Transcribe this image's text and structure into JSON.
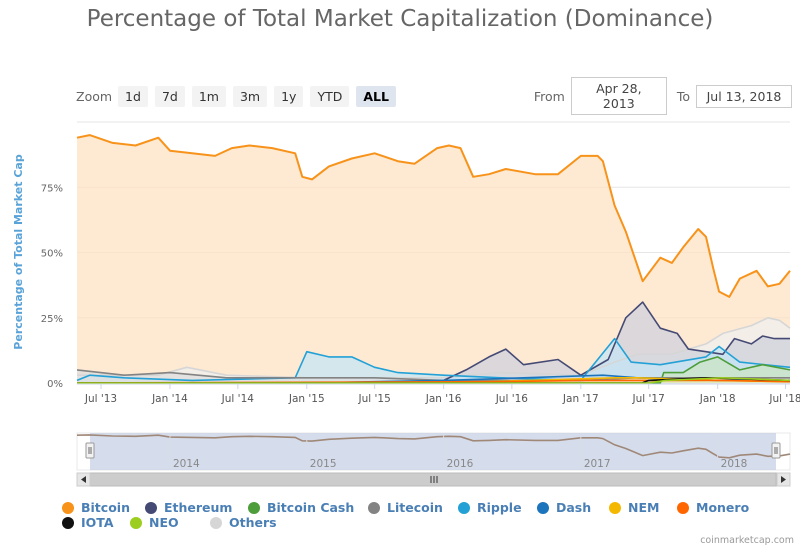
{
  "page": {
    "credit": "coinmarketcap.com"
  },
  "toolbar": {
    "zoom_label": "Zoom",
    "buttons": [
      {
        "label": "1d",
        "active": false
      },
      {
        "label": "7d",
        "active": false
      },
      {
        "label": "1m",
        "active": false
      },
      {
        "label": "3m",
        "active": false
      },
      {
        "label": "1y",
        "active": false
      },
      {
        "label": "YTD",
        "active": false
      },
      {
        "label": "ALL",
        "active": true
      }
    ],
    "from_label": "From",
    "from_value": "Apr 28, 2013",
    "to_label": "To",
    "to_value": "Jul 13, 2018"
  },
  "navigator": {
    "year_labels": [
      "2014",
      "2015",
      "2016",
      "2017",
      "2018"
    ]
  },
  "legend": [
    {
      "name": "Bitcoin",
      "color": "#f7931a"
    },
    {
      "name": "Ethereum",
      "color": "#454a75"
    },
    {
      "name": "Bitcoin Cash",
      "color": "#4d9e3a"
    },
    {
      "name": "Litecoin",
      "color": "#838383"
    },
    {
      "name": "Ripple",
      "color": "#23a1d6"
    },
    {
      "name": "Dash",
      "color": "#1c75bc"
    },
    {
      "name": "NEM",
      "color": "#f5b800"
    },
    {
      "name": "Monero",
      "color": "#ff6600"
    },
    {
      "name": "IOTA",
      "color": "#111111"
    },
    {
      "name": "NEO",
      "color": "#9bce1f"
    },
    {
      "name": "Others",
      "color": "#d6d6d6"
    }
  ],
  "chart_data": {
    "type": "area",
    "title": "Percentage of Total Market Capitalization (Dominance)",
    "ylabel": "Percentage of Total Market Cap",
    "xlabel": "",
    "ylim": [
      0,
      100
    ],
    "x_range": [
      "2013-04-28",
      "2018-07-13"
    ],
    "y_ticks": [
      "0%",
      "25%",
      "50%",
      "75%"
    ],
    "x_ticks": [
      {
        "label": "Jul '13",
        "date": "2013-07-01"
      },
      {
        "label": "Jan '14",
        "date": "2014-01-01"
      },
      {
        "label": "Jul '14",
        "date": "2014-07-01"
      },
      {
        "label": "Jan '15",
        "date": "2015-01-01"
      },
      {
        "label": "Jul '15",
        "date": "2015-07-01"
      },
      {
        "label": "Jan '16",
        "date": "2016-01-01"
      },
      {
        "label": "Jul '16",
        "date": "2016-07-01"
      },
      {
        "label": "Jan '17",
        "date": "2017-01-01"
      },
      {
        "label": "Jul '17",
        "date": "2017-07-01"
      },
      {
        "label": "Jan '18",
        "date": "2018-01-01"
      },
      {
        "label": "Jul '18",
        "date": "2018-07-01"
      }
    ],
    "grid": true,
    "legend_position": "bottom",
    "series": [
      {
        "name": "Bitcoin",
        "color": "#f7931a",
        "fill": "#fde1c4",
        "points": [
          [
            "2013-04-28",
            94
          ],
          [
            "2013-06-01",
            95
          ],
          [
            "2013-08-01",
            92
          ],
          [
            "2013-10-01",
            91
          ],
          [
            "2013-12-01",
            94
          ],
          [
            "2014-01-01",
            89
          ],
          [
            "2014-03-01",
            88
          ],
          [
            "2014-05-01",
            87
          ],
          [
            "2014-06-15",
            90
          ],
          [
            "2014-08-01",
            91
          ],
          [
            "2014-10-01",
            90
          ],
          [
            "2014-12-01",
            88
          ],
          [
            "2014-12-20",
            79
          ],
          [
            "2015-01-15",
            78
          ],
          [
            "2015-03-01",
            83
          ],
          [
            "2015-05-01",
            86
          ],
          [
            "2015-07-01",
            88
          ],
          [
            "2015-09-01",
            85
          ],
          [
            "2015-10-15",
            84
          ],
          [
            "2015-12-15",
            90
          ],
          [
            "2016-01-15",
            91
          ],
          [
            "2016-02-15",
            90
          ],
          [
            "2016-03-20",
            79
          ],
          [
            "2016-05-01",
            80
          ],
          [
            "2016-06-15",
            82
          ],
          [
            "2016-09-01",
            80
          ],
          [
            "2016-11-01",
            80
          ],
          [
            "2017-01-01",
            87
          ],
          [
            "2017-02-15",
            87
          ],
          [
            "2017-03-01",
            85
          ],
          [
            "2017-04-01",
            68
          ],
          [
            "2017-05-01",
            58
          ],
          [
            "2017-06-15",
            39
          ],
          [
            "2017-08-01",
            48
          ],
          [
            "2017-09-01",
            46
          ],
          [
            "2017-10-01",
            52
          ],
          [
            "2017-11-10",
            59
          ],
          [
            "2017-12-01",
            56
          ],
          [
            "2017-12-20",
            44
          ],
          [
            "2018-01-05",
            35
          ],
          [
            "2018-02-01",
            33
          ],
          [
            "2018-03-01",
            40
          ],
          [
            "2018-04-15",
            43
          ],
          [
            "2018-05-15",
            37
          ],
          [
            "2018-06-15",
            38
          ],
          [
            "2018-07-13",
            43
          ]
        ]
      },
      {
        "name": "Others",
        "color": "#d6d6d6",
        "fill": "#efefef",
        "points": [
          [
            "2013-04-28",
            3
          ],
          [
            "2013-12-01",
            3
          ],
          [
            "2014-02-15",
            6
          ],
          [
            "2014-06-01",
            3
          ],
          [
            "2015-01-01",
            2
          ],
          [
            "2016-01-01",
            2
          ],
          [
            "2016-06-01",
            4
          ],
          [
            "2017-01-01",
            3
          ],
          [
            "2017-04-01",
            8
          ],
          [
            "2017-06-01",
            11
          ],
          [
            "2017-09-01",
            11
          ],
          [
            "2017-12-01",
            15
          ],
          [
            "2018-01-15",
            19
          ],
          [
            "2018-04-01",
            22
          ],
          [
            "2018-05-15",
            25
          ],
          [
            "2018-06-15",
            24
          ],
          [
            "2018-07-13",
            21
          ]
        ]
      },
      {
        "name": "Ethereum",
        "color": "#454a75",
        "fill": "#cfd0dc",
        "points": [
          [
            "2013-04-28",
            0
          ],
          [
            "2015-08-01",
            0
          ],
          [
            "2016-01-01",
            1
          ],
          [
            "2016-03-01",
            5
          ],
          [
            "2016-05-01",
            10
          ],
          [
            "2016-06-15",
            13
          ],
          [
            "2016-08-01",
            7
          ],
          [
            "2016-11-01",
            9
          ],
          [
            "2017-01-01",
            3
          ],
          [
            "2017-03-15",
            9
          ],
          [
            "2017-05-01",
            25
          ],
          [
            "2017-06-15",
            31
          ],
          [
            "2017-08-01",
            21
          ],
          [
            "2017-09-15",
            19
          ],
          [
            "2017-10-15",
            13
          ],
          [
            "2017-12-01",
            12
          ],
          [
            "2018-01-15",
            11
          ],
          [
            "2018-02-15",
            17
          ],
          [
            "2018-04-01",
            15
          ],
          [
            "2018-05-01",
            18
          ],
          [
            "2018-06-01",
            17
          ],
          [
            "2018-07-13",
            17
          ]
        ]
      },
      {
        "name": "Ripple",
        "color": "#23a1d6",
        "fill": "#c6e6f4",
        "points": [
          [
            "2013-04-28",
            1
          ],
          [
            "2013-06-01",
            3
          ],
          [
            "2013-09-01",
            2
          ],
          [
            "2014-03-01",
            1
          ],
          [
            "2014-12-01",
            2
          ],
          [
            "2015-01-01",
            12
          ],
          [
            "2015-03-01",
            10
          ],
          [
            "2015-05-01",
            10
          ],
          [
            "2015-07-01",
            6
          ],
          [
            "2015-09-01",
            4
          ],
          [
            "2016-01-01",
            3
          ],
          [
            "2016-06-01",
            2
          ],
          [
            "2017-01-01",
            1
          ],
          [
            "2017-04-01",
            17
          ],
          [
            "2017-05-15",
            8
          ],
          [
            "2017-08-01",
            7
          ],
          [
            "2017-12-01",
            10
          ],
          [
            "2018-01-05",
            14
          ],
          [
            "2018-03-01",
            8
          ],
          [
            "2018-07-13",
            6
          ]
        ]
      },
      {
        "name": "Bitcoin Cash",
        "color": "#4d9e3a",
        "fill": "#cbe4c4",
        "points": [
          [
            "2013-04-28",
            0
          ],
          [
            "2017-08-01",
            0
          ],
          [
            "2017-08-10",
            4
          ],
          [
            "2017-10-01",
            4
          ],
          [
            "2017-11-15",
            8
          ],
          [
            "2018-01-01",
            10
          ],
          [
            "2018-03-01",
            5
          ],
          [
            "2018-05-01",
            7
          ],
          [
            "2018-07-13",
            5
          ]
        ]
      },
      {
        "name": "Litecoin",
        "color": "#838383",
        "fill": "#dddddd",
        "points": [
          [
            "2013-04-28",
            5
          ],
          [
            "2013-09-01",
            3
          ],
          [
            "2014-01-01",
            4
          ],
          [
            "2014-06-01",
            2
          ],
          [
            "2015-07-01",
            2
          ],
          [
            "2016-01-01",
            1
          ],
          [
            "2017-01-01",
            1
          ],
          [
            "2017-06-01",
            2
          ],
          [
            "2017-12-01",
            2
          ],
          [
            "2018-07-13",
            2
          ]
        ]
      },
      {
        "name": "Dash",
        "color": "#1c75bc",
        "fill": "#c4d9ee",
        "points": [
          [
            "2013-04-28",
            0
          ],
          [
            "2015-01-01",
            0
          ],
          [
            "2016-01-01",
            1
          ],
          [
            "2017-03-01",
            3
          ],
          [
            "2017-06-01",
            2
          ],
          [
            "2018-01-01",
            1
          ],
          [
            "2018-07-13",
            1
          ]
        ]
      },
      {
        "name": "NEM",
        "color": "#f5b800",
        "fill": "#f9e7a8",
        "points": [
          [
            "2013-04-28",
            0
          ],
          [
            "2016-01-01",
            0
          ],
          [
            "2017-04-01",
            2
          ],
          [
            "2017-06-01",
            2
          ],
          [
            "2018-01-01",
            1
          ],
          [
            "2018-07-13",
            0.5
          ]
        ]
      },
      {
        "name": "Monero",
        "color": "#ff6600",
        "fill": "#fdd1b0",
        "points": [
          [
            "2013-04-28",
            0
          ],
          [
            "2016-06-01",
            0.5
          ],
          [
            "2017-01-01",
            1
          ],
          [
            "2018-01-01",
            1
          ],
          [
            "2018-07-13",
            0.5
          ]
        ]
      },
      {
        "name": "IOTA",
        "color": "#111111",
        "fill": "#cccccc",
        "points": [
          [
            "2013-04-28",
            0
          ],
          [
            "2017-06-13",
            0
          ],
          [
            "2017-07-01",
            1
          ],
          [
            "2017-12-01",
            2
          ],
          [
            "2018-07-13",
            1
          ]
        ]
      },
      {
        "name": "NEO",
        "color": "#9bce1f",
        "fill": "#e3f0b8",
        "points": [
          [
            "2013-04-28",
            0
          ],
          [
            "2017-07-01",
            0
          ],
          [
            "2017-08-15",
            1
          ],
          [
            "2018-01-15",
            2
          ],
          [
            "2018-07-13",
            1
          ]
        ]
      }
    ]
  }
}
